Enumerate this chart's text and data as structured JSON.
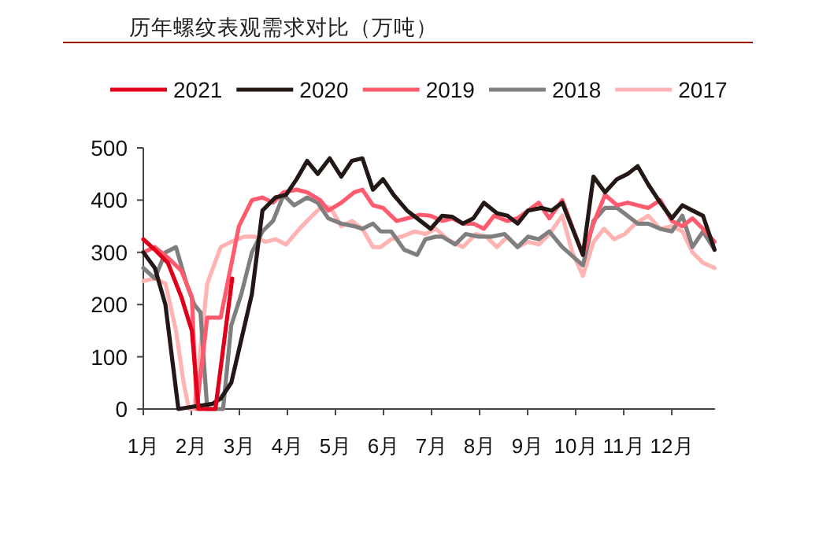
{
  "chart_data": {
    "type": "line",
    "title": "历年螺纹表观需求对比（万吨）",
    "xlim": [
      1,
      12.9
    ],
    "xticks": [
      {
        "value": 1,
        "label": "1月"
      },
      {
        "value": 2,
        "label": "2月"
      },
      {
        "value": 3,
        "label": "3月"
      },
      {
        "value": 4,
        "label": "4月"
      },
      {
        "value": 5,
        "label": "5月"
      },
      {
        "value": 6,
        "label": "6月"
      },
      {
        "value": 7,
        "label": "7月"
      },
      {
        "value": 8,
        "label": "8月"
      },
      {
        "value": 9,
        "label": "9月"
      },
      {
        "value": 10,
        "label": "10月"
      },
      {
        "value": 11,
        "label": "11月"
      },
      {
        "value": 12,
        "label": "12月"
      }
    ],
    "ylim": [
      0,
      500
    ],
    "yticks": [
      0,
      100,
      200,
      300,
      400,
      500
    ],
    "grid": false,
    "legend": "top",
    "marker": "none",
    "line_style": "solid",
    "series": [
      {
        "name": "2021",
        "color": "#e0001b",
        "x": [
          1,
          1.24,
          1.51,
          1.79,
          2.01,
          2.15,
          2.5,
          2.85
        ],
        "values": [
          325,
          305,
          280,
          215,
          150,
          0,
          0,
          250
        ]
      },
      {
        "name": "2020",
        "color": "#231815",
        "x": [
          1,
          1.24,
          1.46,
          1.73,
          2.44,
          2.61,
          2.83,
          3.26,
          3.48,
          3.75,
          3.97,
          4.19,
          4.41,
          4.63,
          4.88,
          5.12,
          5.34,
          5.56,
          5.78,
          5.99,
          6.21,
          6.49,
          6.7,
          6.98,
          7.22,
          7.43,
          7.65,
          7.87,
          8.09,
          8.36,
          8.58,
          8.79,
          9.01,
          9.28,
          9.5,
          9.72,
          10.15,
          10.37,
          10.61,
          10.86,
          11.08,
          11.29,
          11.51,
          11.76,
          12.0,
          12.22,
          12.43,
          12.65,
          12.89
        ],
        "values": [
          300,
          270,
          200,
          0,
          10,
          20,
          50,
          220,
          380,
          405,
          410,
          440,
          475,
          450,
          480,
          445,
          475,
          480,
          420,
          440,
          410,
          380,
          365,
          345,
          370,
          368,
          355,
          365,
          395,
          375,
          370,
          355,
          380,
          385,
          380,
          395,
          295,
          445,
          415,
          440,
          450,
          465,
          430,
          395,
          365,
          390,
          380,
          370,
          305
        ]
      },
      {
        "name": "2019",
        "color": "#ff5a6e",
        "x": [
          1,
          1.24,
          1.51,
          1.79,
          2.01,
          2.11,
          2.33,
          2.61,
          2.99,
          3.26,
          3.48,
          3.7,
          3.92,
          4.19,
          4.41,
          4.68,
          4.85,
          5.12,
          5.39,
          5.56,
          5.78,
          5.99,
          6.27,
          6.49,
          6.76,
          6.98,
          7.22,
          7.43,
          7.65,
          7.87,
          8.09,
          8.3,
          8.58,
          8.79,
          9.01,
          9.23,
          9.45,
          9.72,
          10.15,
          10.37,
          10.61,
          10.86,
          11.08,
          11.29,
          11.51,
          11.76,
          12.0,
          12.22,
          12.43,
          12.65,
          12.89
        ],
        "values": [
          300,
          310,
          290,
          265,
          215,
          0,
          175,
          175,
          350,
          400,
          405,
          395,
          415,
          420,
          415,
          400,
          380,
          395,
          415,
          420,
          390,
          385,
          360,
          365,
          372,
          370,
          360,
          365,
          355,
          355,
          345,
          370,
          360,
          365,
          380,
          395,
          365,
          400,
          295,
          355,
          410,
          390,
          395,
          390,
          385,
          400,
          360,
          350,
          365,
          345,
          320
        ]
      },
      {
        "name": "2018",
        "color": "#7f7f7f",
        "x": [
          1,
          1.24,
          1.46,
          1.68,
          1.9,
          2.06,
          2.19,
          2.33,
          2.66,
          2.83,
          3.04,
          3.26,
          3.48,
          3.7,
          3.92,
          4.14,
          4.41,
          4.63,
          4.85,
          5.12,
          5.39,
          5.56,
          5.78,
          5.94,
          6.16,
          6.43,
          6.7,
          6.87,
          7.09,
          7.22,
          7.49,
          7.71,
          7.98,
          8.25,
          8.52,
          8.79,
          9.01,
          9.23,
          9.45,
          9.72,
          10.15,
          10.37,
          10.61,
          10.86,
          11.08,
          11.29,
          11.51,
          11.76,
          12.0,
          12.22,
          12.43,
          12.65,
          12.89
        ],
        "values": [
          270,
          250,
          300,
          310,
          240,
          200,
          185,
          0,
          0,
          160,
          220,
          300,
          340,
          360,
          410,
          390,
          405,
          395,
          365,
          355,
          350,
          345,
          355,
          340,
          340,
          305,
          295,
          325,
          330,
          330,
          315,
          335,
          330,
          330,
          335,
          310,
          330,
          325,
          340,
          310,
          275,
          360,
          385,
          385,
          370,
          355,
          355,
          345,
          340,
          370,
          310,
          340,
          305
        ]
      },
      {
        "name": "2017",
        "color": "#ffb3b3",
        "x": [
          1,
          1.24,
          1.46,
          1.68,
          1.84,
          1.95,
          2.06,
          2.17,
          2.33,
          2.61,
          2.83,
          3.1,
          3.32,
          3.54,
          3.75,
          3.97,
          4.25,
          4.46,
          4.74,
          4.9,
          5.12,
          5.34,
          5.56,
          5.78,
          5.94,
          6.16,
          6.38,
          6.65,
          6.87,
          7.09,
          7.33,
          7.65,
          7.92,
          8.14,
          8.36,
          8.58,
          8.79,
          9.01,
          9.23,
          9.45,
          9.72,
          9.93,
          10.15,
          10.37,
          10.59,
          10.8,
          11.02,
          11.24,
          11.51,
          11.76,
          12.0,
          12.22,
          12.43,
          12.65,
          12.89
        ],
        "values": [
          245,
          250,
          240,
          150,
          50,
          0,
          0,
          100,
          240,
          310,
          320,
          330,
          330,
          320,
          325,
          315,
          345,
          365,
          390,
          385,
          350,
          360,
          345,
          310,
          310,
          325,
          330,
          340,
          335,
          345,
          325,
          310,
          335,
          330,
          310,
          330,
          310,
          320,
          315,
          335,
          370,
          300,
          255,
          320,
          345,
          325,
          335,
          355,
          370,
          345,
          350,
          340,
          300,
          280,
          270
        ]
      }
    ]
  }
}
